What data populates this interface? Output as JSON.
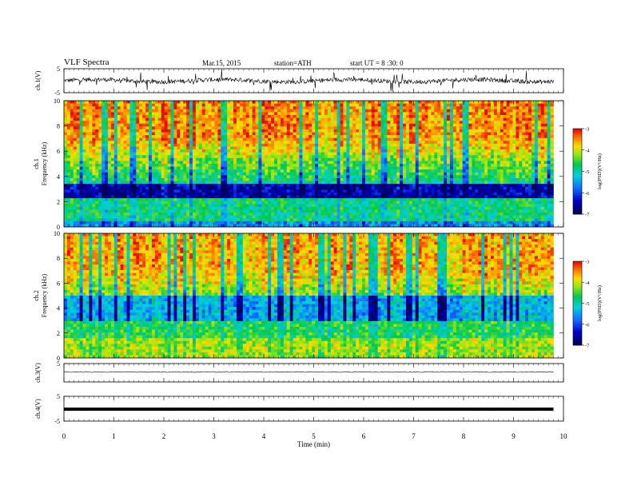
{
  "header": {
    "title": "VLF  Spectra",
    "date": "Mar.15, 2015",
    "station": "station=ATH",
    "start": "start  UT  =   8 :30: 0"
  },
  "chart_data": [
    {
      "type": "line",
      "name": "ch1-waveform",
      "ylabel": "ch.1(V)",
      "ylim": [
        -5,
        5
      ],
      "yticks": [
        "5",
        "-5"
      ],
      "xlim": [
        0,
        10
      ],
      "trace_until": 9.8
    },
    {
      "type": "heatmap",
      "name": "ch1-spectrogram",
      "ylabel_line1": "ch.1",
      "ylabel_line2": "Frequency  (kHz)",
      "ylim": [
        0,
        10
      ],
      "yticks": [
        "0",
        "2",
        "4",
        "6",
        "8",
        "10"
      ],
      "xlim": [
        0,
        10
      ],
      "data_until": 9.8,
      "colorbar": {
        "label": "log(PSD)(V²/Hz)",
        "range": [
          -7,
          -3
        ],
        "ticks": [
          "-3",
          "-4",
          "-5",
          "-6",
          "-7"
        ]
      }
    },
    {
      "type": "heatmap",
      "name": "ch2-spectrogram",
      "ylabel_line1": "ch.2",
      "ylabel_line2": "Frequency  (kHz)",
      "ylim": [
        0,
        10
      ],
      "yticks": [
        "0",
        "2",
        "4",
        "6",
        "8",
        "10"
      ],
      "xlim": [
        0,
        10
      ],
      "data_until": 9.8,
      "colorbar": {
        "label": "log(PSD)(V²/Hz)",
        "range": [
          -7,
          -3
        ],
        "ticks": [
          "-3",
          "-4",
          "-5",
          "-6",
          "-7"
        ]
      }
    },
    {
      "type": "line",
      "name": "ch3-waveform",
      "ylabel": "ch.3(V)",
      "ylim": [
        -5,
        5
      ],
      "yticks": [
        "5"
      ],
      "xlim": [
        0,
        10
      ],
      "trace_until": 9.8
    },
    {
      "type": "line",
      "name": "ch4-waveform",
      "ylabel": "ch.4(V)",
      "ylim": [
        -5,
        5
      ],
      "yticks": [
        "5",
        "-5"
      ],
      "xlim": [
        0,
        10
      ],
      "trace_until": 9.8
    }
  ],
  "xaxis": {
    "label": "Time  (min)",
    "ticks": [
      "0",
      "1",
      "2",
      "3",
      "4",
      "5",
      "6",
      "7",
      "8",
      "9",
      "10"
    ]
  },
  "colors": {
    "heat_lo": "#000066",
    "heat_mid": "#00cc66",
    "heat_hi": "#ee1111"
  }
}
